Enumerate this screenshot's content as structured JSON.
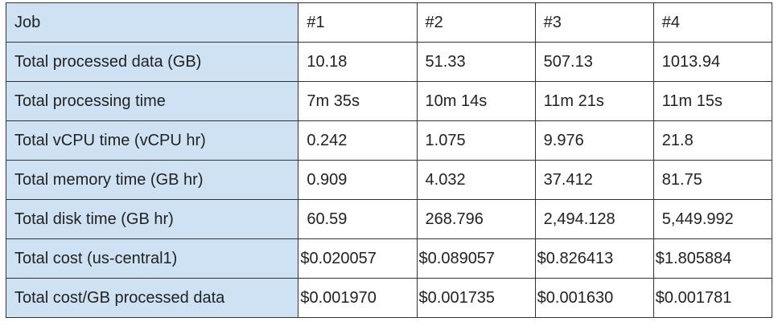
{
  "table": {
    "header": [
      "Job",
      "#1",
      "#2",
      "#3",
      "#4"
    ],
    "rows": [
      [
        "Total processed data (GB)",
        "10.18",
        "51.33",
        "507.13",
        "1013.94"
      ],
      [
        "Total processing time",
        "7m 35s",
        "10m 14s",
        "11m 21s",
        "11m 15s"
      ],
      [
        "Total vCPU time (vCPU hr)",
        "0.242",
        "1.075",
        "9.976",
        "21.8"
      ],
      [
        "Total memory time (GB hr)",
        "0.909",
        "4.032",
        "37.412",
        "81.75"
      ],
      [
        "Total disk time (GB hr)",
        "60.59",
        "268.796",
        "2,494.128",
        "5,449.992"
      ],
      [
        "Total cost (us-central1)",
        "$0.020057",
        "$0.089057",
        "$0.826413",
        "$1.805884"
      ],
      [
        "Total cost/GB processed data",
        "$0.001970",
        "$0.001735",
        "$0.001630",
        "$0.001781"
      ]
    ]
  }
}
